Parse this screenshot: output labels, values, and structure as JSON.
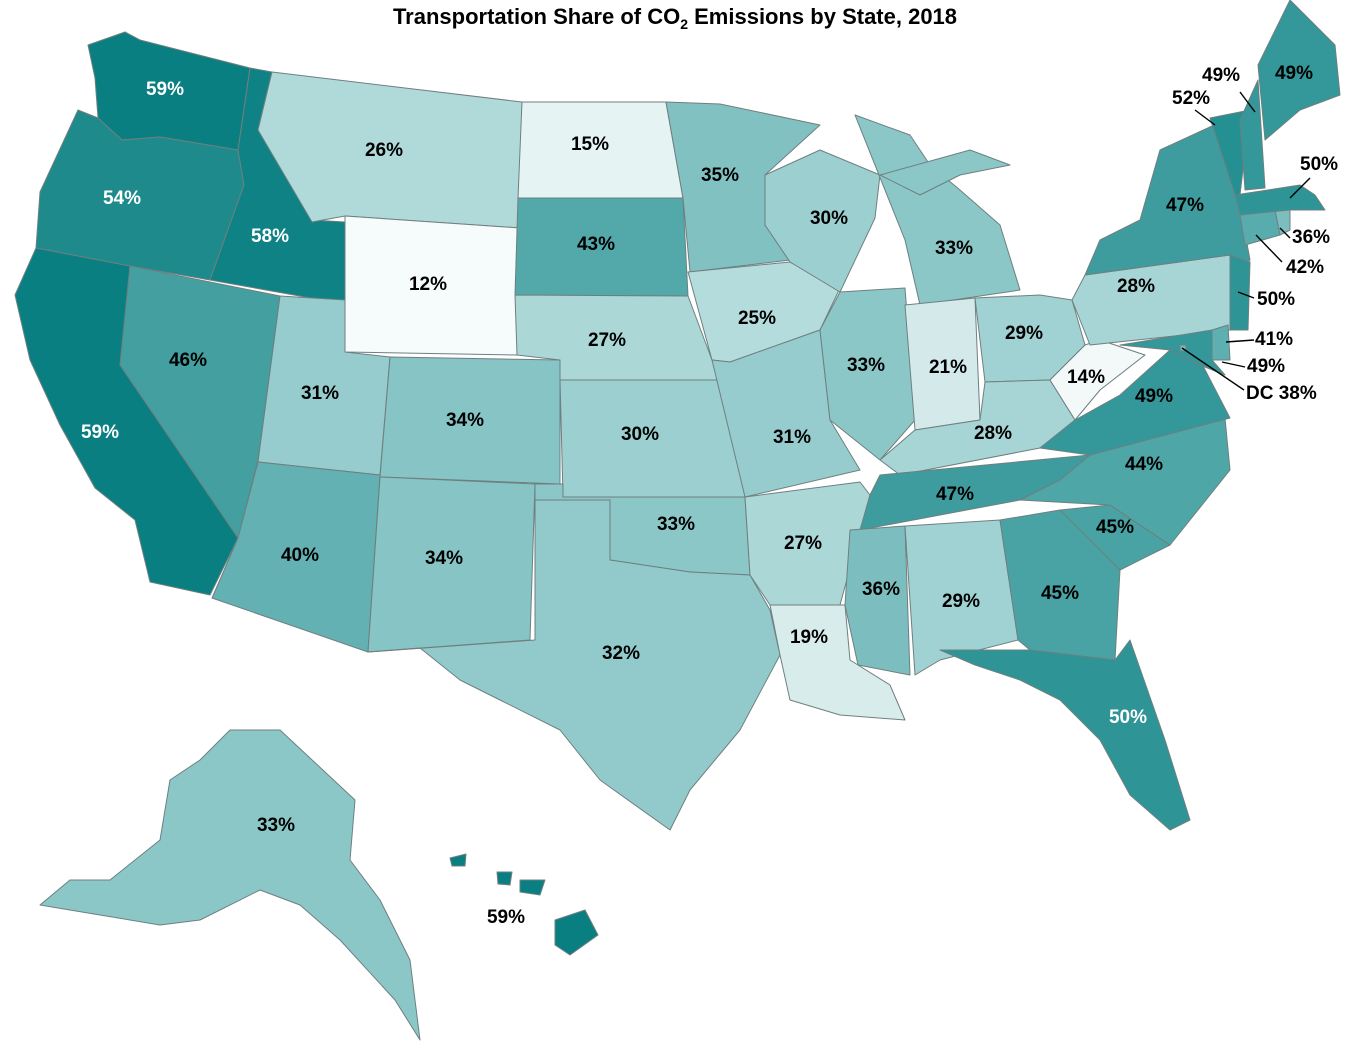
{
  "title": {
    "prefix": "Transportation Share of CO",
    "subscript": "2",
    "suffix": " Emissions by State, 2018"
  },
  "colors": {
    "12": "#f6fbfb",
    "14": "#f3f9f9",
    "15": "#e6f3f3",
    "19": "#d8ecec",
    "21": "#d3e9ea",
    "25": "#b5dcdd",
    "26": "#b0dada",
    "27": "#abd7d7",
    "28": "#a7d5d5",
    "29": "#a1d2d3",
    "30": "#9ccfd0",
    "31": "#96cccd",
    "32": "#92cacb",
    "33": "#8cc7c8",
    "34": "#86c4c5",
    "35": "#81c1c2",
    "36": "#7cbebf",
    "38": "#70b8b9",
    "40": "#63b1b3",
    "41": "#5dafb0",
    "42": "#58acad",
    "43": "#53a9aa",
    "44": "#4ea6a7",
    "45": "#49a3a4",
    "46": "#449fa1",
    "47": "#3f9c9e",
    "49": "#34979a",
    "50": "#2f9496",
    "52": "#259092",
    "54": "#1f8a8c",
    "58": "#0f8285",
    "59": "#0a7f82",
    "text_dark": "#000000",
    "text_light": "#ffffff"
  },
  "states": [
    {
      "code": "WA",
      "label": "59%",
      "value": 59
    },
    {
      "code": "OR",
      "label": "54%",
      "value": 54
    },
    {
      "code": "CA",
      "label": "59%",
      "value": 59
    },
    {
      "code": "ID",
      "label": "58%",
      "value": 58
    },
    {
      "code": "NV",
      "label": "46%",
      "value": 46
    },
    {
      "code": "MT",
      "label": "26%",
      "value": 26
    },
    {
      "code": "WY",
      "label": "12%",
      "value": 12
    },
    {
      "code": "UT",
      "label": "31%",
      "value": 31
    },
    {
      "code": "AZ",
      "label": "40%",
      "value": 40
    },
    {
      "code": "CO",
      "label": "34%",
      "value": 34
    },
    {
      "code": "NM",
      "label": "34%",
      "value": 34
    },
    {
      "code": "ND",
      "label": "15%",
      "value": 15
    },
    {
      "code": "SD",
      "label": "43%",
      "value": 43
    },
    {
      "code": "NE",
      "label": "27%",
      "value": 27
    },
    {
      "code": "KS",
      "label": "30%",
      "value": 30
    },
    {
      "code": "OK",
      "label": "33%",
      "value": 33
    },
    {
      "code": "TX",
      "label": "32%",
      "value": 32
    },
    {
      "code": "MN",
      "label": "35%",
      "value": 35
    },
    {
      "code": "IA",
      "label": "25%",
      "value": 25
    },
    {
      "code": "MO",
      "label": "31%",
      "value": 31
    },
    {
      "code": "AR",
      "label": "27%",
      "value": 27
    },
    {
      "code": "LA",
      "label": "19%",
      "value": 19
    },
    {
      "code": "WI",
      "label": "30%",
      "value": 30
    },
    {
      "code": "IL",
      "label": "33%",
      "value": 33
    },
    {
      "code": "MI",
      "label": "33%",
      "value": 33
    },
    {
      "code": "IN",
      "label": "21%",
      "value": 21
    },
    {
      "code": "OH",
      "label": "29%",
      "value": 29
    },
    {
      "code": "KY",
      "label": "28%",
      "value": 28
    },
    {
      "code": "TN",
      "label": "47%",
      "value": 47
    },
    {
      "code": "MS",
      "label": "36%",
      "value": 36
    },
    {
      "code": "AL",
      "label": "29%",
      "value": 29
    },
    {
      "code": "GA",
      "label": "45%",
      "value": 45
    },
    {
      "code": "FL",
      "label": "50%",
      "value": 50
    },
    {
      "code": "SC",
      "label": "45%",
      "value": 45
    },
    {
      "code": "NC",
      "label": "44%",
      "value": 44
    },
    {
      "code": "VA",
      "label": "49%",
      "value": 49
    },
    {
      "code": "WV",
      "label": "14%",
      "value": 14
    },
    {
      "code": "PA",
      "label": "28%",
      "value": 28
    },
    {
      "code": "NY",
      "label": "47%",
      "value": 47
    },
    {
      "code": "NJ",
      "label": "50%",
      "value": 50
    },
    {
      "code": "DE",
      "label": "41%",
      "value": 41
    },
    {
      "code": "MD",
      "label": "49%",
      "value": 49
    },
    {
      "code": "DC",
      "label": "DC 38%",
      "value": 38
    },
    {
      "code": "CT",
      "label": "42%",
      "value": 42
    },
    {
      "code": "RI",
      "label": "36%",
      "value": 36
    },
    {
      "code": "MA",
      "label": "50%",
      "value": 50
    },
    {
      "code": "VT",
      "label": "52%",
      "value": 52
    },
    {
      "code": "NH",
      "label": "49%",
      "value": 49
    },
    {
      "code": "ME",
      "label": "49%",
      "value": 49
    },
    {
      "code": "AK",
      "label": "33%",
      "value": 33
    },
    {
      "code": "HI",
      "label": "59%",
      "value": 59
    }
  ]
}
